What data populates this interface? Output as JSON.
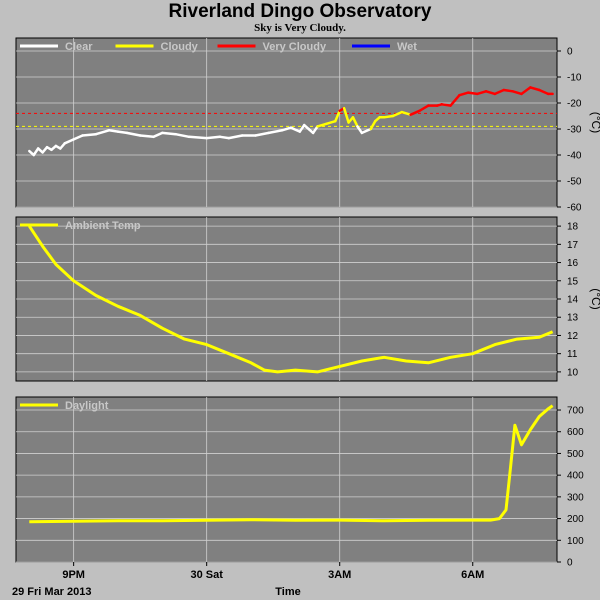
{
  "title": "Riverland Dingo Observatory",
  "subtitle": "Sky is Very Cloudy.",
  "colors": {
    "background": "#c0c0c0",
    "plot_bg": "#808080",
    "grid": "#d0d0d0",
    "clear": "#ffffff",
    "cloudy": "#ffff00",
    "very_cloudy": "#ff0000",
    "wet": "#0000ff",
    "ambient": "#ffff00",
    "daylight": "#ffff00"
  },
  "chart_data": [
    {
      "type": "line",
      "name": "sky-temperature",
      "unit": "(°C)",
      "ylim": [
        -60,
        5
      ],
      "yticks": [
        0,
        -10,
        -20,
        -30,
        -40,
        -50,
        -60
      ],
      "grid": true,
      "legend": "top-left",
      "legend_entries": [
        {
          "label": "Clear",
          "color": "#ffffff"
        },
        {
          "label": "Cloudy",
          "color": "#ffff00"
        },
        {
          "label": "Very Cloudy",
          "color": "#ff0000"
        },
        {
          "label": "Wet",
          "color": "#0000ff"
        }
      ],
      "thresholds": [
        {
          "value": -24,
          "color": "#ff0000"
        },
        {
          "value": -29,
          "color": "#ffff00"
        }
      ],
      "x_hours": [
        0.0,
        0.1,
        0.2,
        0.3,
        0.4,
        0.5,
        0.6,
        0.7,
        0.8,
        1.0,
        1.2,
        1.5,
        1.8,
        2.0,
        2.2,
        2.5,
        2.8,
        3.0,
        3.3,
        3.6,
        4.0,
        4.3,
        4.5,
        4.8,
        5.1,
        5.4,
        5.7,
        5.9,
        6.1,
        6.2,
        6.3,
        6.4,
        6.5,
        6.7,
        6.9,
        7.0,
        7.1,
        7.2,
        7.3,
        7.4,
        7.5,
        7.7,
        7.8,
        7.9,
        8.0,
        8.2,
        8.4,
        8.6,
        8.8,
        9.0,
        9.2,
        9.3,
        9.5,
        9.7,
        9.9,
        10.1,
        10.3,
        10.5,
        10.7,
        10.9,
        11.1,
        11.3,
        11.5,
        11.7,
        11.8
      ],
      "series": [
        {
          "values": [
            -38.5,
            -40.0,
            -37.5,
            -39.0,
            -37.0,
            -38.0,
            -36.5,
            -37.5,
            -35.5,
            -34.0,
            -32.5,
            -32.0,
            -30.5,
            -31.0,
            -31.5,
            -32.5,
            -33.0,
            -31.5,
            -32.0,
            -33.0,
            -33.5,
            -33.0,
            -33.5,
            -32.5,
            -32.5,
            -31.5,
            -30.5,
            -29.5,
            -31.0,
            -28.5,
            -30.0,
            -31.5,
            -29.0,
            -28.0,
            -27.0,
            -23.0,
            -22.0,
            -27.5,
            -25.5,
            -29.0,
            -31.5,
            -30.0,
            -27.0,
            -25.5,
            -25.5,
            -25.0,
            -23.5,
            -24.5,
            -23.0,
            -21.0,
            -21.0,
            -20.5,
            -21.0,
            -17.0,
            -16.0,
            -16.5,
            -15.5,
            -16.5,
            -15.0,
            -15.5,
            -16.5,
            -14.0,
            -15.0,
            -16.5,
            -16.5
          ]
        },
        {
          "values": []
        }
      ]
    },
    {
      "type": "line",
      "name": "ambient-temperature",
      "unit": "(°C)",
      "ylim": [
        9.5,
        18.5
      ],
      "yticks": [
        10,
        11,
        12,
        13,
        14,
        15,
        16,
        17,
        18
      ],
      "grid": true,
      "legend": "top-left",
      "legend_entries": [
        {
          "label": "Ambient Temp",
          "color": "#ffff00"
        }
      ],
      "x_hours": [
        0.0,
        0.3,
        0.6,
        1.0,
        1.5,
        2.0,
        2.5,
        3.0,
        3.5,
        4.0,
        4.5,
        5.0,
        5.3,
        5.6,
        6.0,
        6.5,
        7.0,
        7.5,
        8.0,
        8.5,
        9.0,
        9.5,
        10.0,
        10.5,
        11.0,
        11.5,
        11.8
      ],
      "series": [
        {
          "values": [
            18.0,
            16.9,
            15.9,
            15.0,
            14.2,
            13.6,
            13.1,
            12.4,
            11.8,
            11.5,
            11.0,
            10.5,
            10.1,
            10.0,
            10.1,
            10.0,
            10.3,
            10.6,
            10.8,
            10.6,
            10.5,
            10.8,
            11.0,
            11.5,
            11.8,
            11.9,
            12.2
          ]
        }
      ]
    },
    {
      "type": "line",
      "name": "daylight",
      "unit": "",
      "ylim": [
        0,
        760
      ],
      "yticks": [
        0,
        100,
        200,
        300,
        400,
        500,
        600,
        700
      ],
      "grid": true,
      "legend": "top-left",
      "legend_entries": [
        {
          "label": "Daylight",
          "color": "#ffff00"
        }
      ],
      "x_hours": [
        0.0,
        1.0,
        2.0,
        3.0,
        4.0,
        5.0,
        6.0,
        7.0,
        8.0,
        9.0,
        10.0,
        10.4,
        10.6,
        10.75,
        10.85,
        10.95,
        11.1,
        11.3,
        11.5,
        11.7,
        11.8
      ],
      "series": [
        {
          "values": [
            185,
            188,
            190,
            190,
            192,
            195,
            192,
            193,
            190,
            192,
            193,
            193,
            200,
            240,
            430,
            630,
            540,
            610,
            670,
            705,
            720
          ]
        }
      ]
    }
  ],
  "x_axis": {
    "hours_range": [
      -0.3,
      11.9
    ],
    "ticks": [
      {
        "label": "9PM",
        "hours": 1.0
      },
      {
        "label": "30 Sat",
        "hours": 4.0
      },
      {
        "label": "3AM",
        "hours": 7.0
      },
      {
        "label": "6AM",
        "hours": 10.0
      }
    ],
    "start_label": "29 Fri Mar 2013",
    "label": "Time"
  }
}
